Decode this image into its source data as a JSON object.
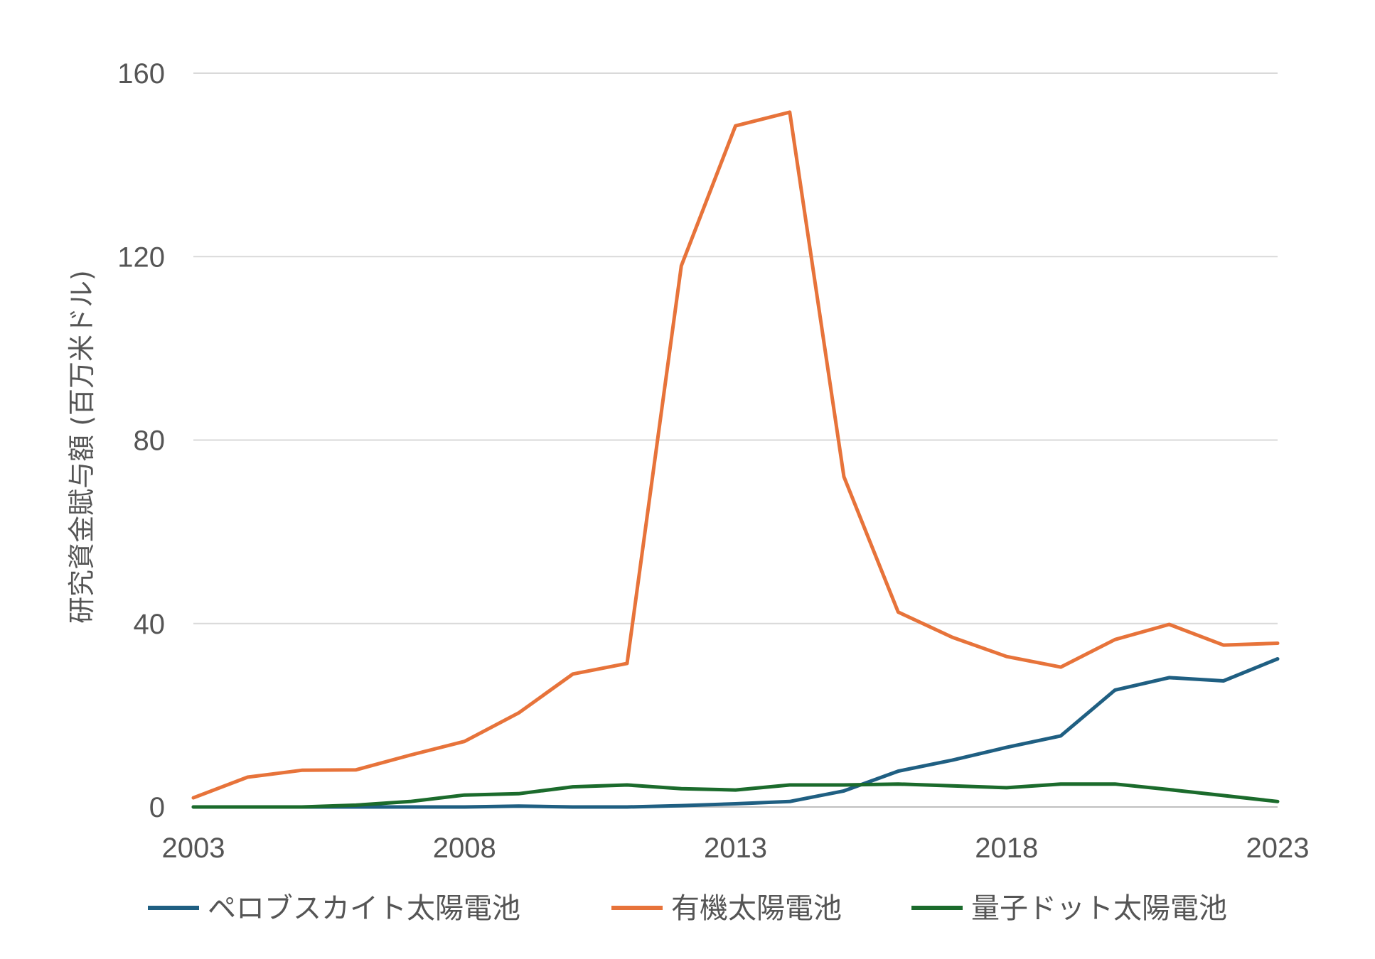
{
  "chart_data": {
    "type": "line",
    "title": "",
    "xlabel": "",
    "ylabel": "研究資金賦与額 (百万米ドル)",
    "x": [
      2003,
      2004,
      2005,
      2006,
      2007,
      2008,
      2009,
      2010,
      2011,
      2012,
      2013,
      2014,
      2015,
      2016,
      2017,
      2018,
      2019,
      2020,
      2021,
      2022,
      2023
    ],
    "x_ticks": [
      "2003",
      "2008",
      "2013",
      "2018",
      "2023"
    ],
    "xlim": [
      2003,
      2023
    ],
    "y_ticks": [
      "0",
      "40",
      "80",
      "120",
      "160"
    ],
    "ylim": [
      0,
      160
    ],
    "grid": true,
    "legend_position": "bottom",
    "series": [
      {
        "name": "ペロブスカイト太陽電池",
        "color": "#1f5f82",
        "values": [
          0,
          0,
          0,
          0,
          0,
          0,
          0.2,
          0,
          0,
          0.3,
          0.7,
          1.2,
          3.5,
          7.8,
          10.2,
          13,
          15.5,
          25.5,
          28.2,
          27.5,
          32.3
        ]
      },
      {
        "name": "有機太陽電池",
        "color": "#e7733a",
        "values": [
          2,
          6.5,
          8,
          8.1,
          11.3,
          14.3,
          20.5,
          29,
          31.3,
          118,
          148.5,
          151.5,
          72,
          42.5,
          37,
          32.8,
          30.5,
          36.5,
          39.8,
          35.3,
          35.7
        ]
      },
      {
        "name": "量子ドット太陽電池",
        "color": "#1b6b2c",
        "values": [
          0,
          0,
          0,
          0.4,
          1.2,
          2.6,
          2.9,
          4.4,
          4.8,
          4,
          3.7,
          4.8,
          4.8,
          5,
          4.6,
          4.2,
          5,
          5,
          3.8,
          2.5,
          1.2
        ]
      }
    ]
  }
}
